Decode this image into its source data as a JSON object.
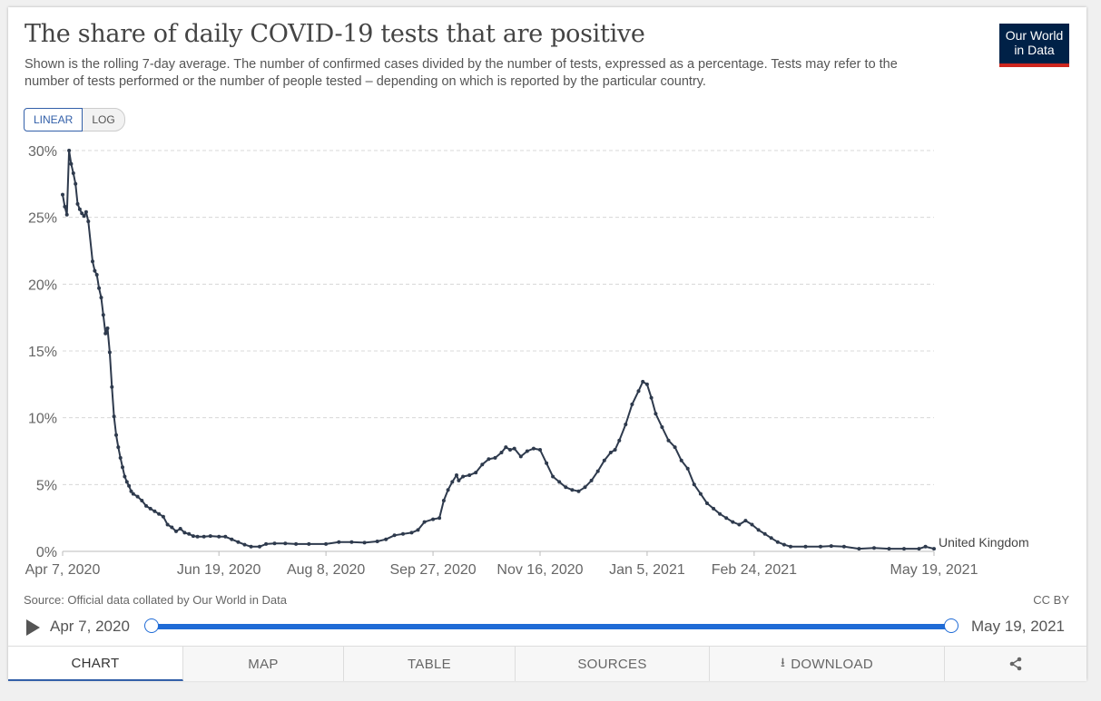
{
  "header": {
    "title": "The share of daily COVID-19 tests that are positive",
    "subtitle": "Shown is the rolling 7-day average. The number of confirmed cases divided by the number of tests, expressed as a percentage. Tests may refer to the number of tests performed or the number of people tested – depending on which is reported by the particular country.",
    "logo_line1": "Our World",
    "logo_line2": "in Data"
  },
  "scale_toggle": {
    "linear": "LINEAR",
    "log": "LOG",
    "selected": "LINEAR"
  },
  "footer": {
    "source": "Source: Official data collated by Our World in Data",
    "license": "CC BY"
  },
  "timeline": {
    "start": "Apr 7, 2020",
    "end": "May 19, 2021"
  },
  "tabs": {
    "chart": "CHART",
    "map": "MAP",
    "table": "TABLE",
    "sources": "SOURCES",
    "download": "DOWNLOAD"
  },
  "icons": {
    "play": "play-icon",
    "download": "download-icon",
    "share": "share-icon"
  },
  "colors": {
    "series": "#2e3a4d",
    "accent": "#1f6bd6",
    "logo_bg": "#002147",
    "logo_bar": "#ce261e"
  },
  "chart_data": {
    "type": "line",
    "title": "The share of daily COVID-19 tests that are positive",
    "ylabel": "",
    "xlabel": "",
    "ylim": [
      0,
      30
    ],
    "y_ticks": [
      0,
      5,
      10,
      15,
      20,
      25,
      30
    ],
    "y_tick_labels": [
      "0%",
      "5%",
      "10%",
      "15%",
      "20%",
      "25%",
      "30%"
    ],
    "x_range": [
      "2020-04-07",
      "2021-05-19"
    ],
    "x_ticks": [
      "2020-04-07",
      "2020-06-19",
      "2020-08-08",
      "2020-09-27",
      "2020-11-16",
      "2021-01-05",
      "2021-02-24",
      "2021-05-19"
    ],
    "x_tick_labels": [
      "Apr 7, 2020",
      "Jun 19, 2020",
      "Aug 8, 2020",
      "Sep 27, 2020",
      "Nov 16, 2020",
      "Jan 5, 2021",
      "Feb 24, 2021",
      "May 19, 2021"
    ],
    "grid": "horizontal dashed",
    "series": [
      {
        "name": "United Kingdom",
        "color": "#2e3a4d",
        "points": [
          [
            "2020-04-07",
            26.7
          ],
          [
            "2020-04-08",
            25.8
          ],
          [
            "2020-04-09",
            25.2
          ],
          [
            "2020-04-10",
            30.0
          ],
          [
            "2020-04-11",
            29.0
          ],
          [
            "2020-04-12",
            28.3
          ],
          [
            "2020-04-13",
            27.5
          ],
          [
            "2020-04-14",
            26.0
          ],
          [
            "2020-04-15",
            25.6
          ],
          [
            "2020-04-16",
            25.3
          ],
          [
            "2020-04-17",
            25.1
          ],
          [
            "2020-04-18",
            25.4
          ],
          [
            "2020-04-19",
            24.7
          ],
          [
            "2020-04-21",
            21.7
          ],
          [
            "2020-04-22",
            21.0
          ],
          [
            "2020-04-23",
            20.7
          ],
          [
            "2020-04-24",
            19.7
          ],
          [
            "2020-04-25",
            19.0
          ],
          [
            "2020-04-26",
            17.7
          ],
          [
            "2020-04-27",
            16.3
          ],
          [
            "2020-04-28",
            16.7
          ],
          [
            "2020-04-29",
            14.9
          ],
          [
            "2020-04-30",
            12.3
          ],
          [
            "2020-05-01",
            10.1
          ],
          [
            "2020-05-02",
            8.7
          ],
          [
            "2020-05-03",
            7.8
          ],
          [
            "2020-05-04",
            7.0
          ],
          [
            "2020-05-05",
            6.3
          ],
          [
            "2020-05-06",
            5.6
          ],
          [
            "2020-05-07",
            5.2
          ],
          [
            "2020-05-08",
            4.9
          ],
          [
            "2020-05-09",
            4.5
          ],
          [
            "2020-05-10",
            4.3
          ],
          [
            "2020-05-12",
            4.1
          ],
          [
            "2020-05-14",
            3.8
          ],
          [
            "2020-05-16",
            3.4
          ],
          [
            "2020-05-18",
            3.2
          ],
          [
            "2020-05-20",
            3.0
          ],
          [
            "2020-05-22",
            2.8
          ],
          [
            "2020-05-24",
            2.6
          ],
          [
            "2020-05-26",
            2.0
          ],
          [
            "2020-05-28",
            1.8
          ],
          [
            "2020-05-30",
            1.5
          ],
          [
            "2020-06-01",
            1.7
          ],
          [
            "2020-06-03",
            1.4
          ],
          [
            "2020-06-05",
            1.3
          ],
          [
            "2020-06-07",
            1.15
          ],
          [
            "2020-06-09",
            1.1
          ],
          [
            "2020-06-12",
            1.1
          ],
          [
            "2020-06-15",
            1.15
          ],
          [
            "2020-06-19",
            1.1
          ],
          [
            "2020-06-22",
            1.1
          ],
          [
            "2020-06-25",
            0.9
          ],
          [
            "2020-06-28",
            0.7
          ],
          [
            "2020-07-01",
            0.5
          ],
          [
            "2020-07-04",
            0.35
          ],
          [
            "2020-07-08",
            0.35
          ],
          [
            "2020-07-11",
            0.55
          ],
          [
            "2020-07-15",
            0.6
          ],
          [
            "2020-07-20",
            0.6
          ],
          [
            "2020-07-25",
            0.55
          ],
          [
            "2020-07-31",
            0.55
          ],
          [
            "2020-08-08",
            0.55
          ],
          [
            "2020-08-14",
            0.7
          ],
          [
            "2020-08-20",
            0.7
          ],
          [
            "2020-08-26",
            0.65
          ],
          [
            "2020-09-01",
            0.75
          ],
          [
            "2020-09-05",
            0.9
          ],
          [
            "2020-09-09",
            1.2
          ],
          [
            "2020-09-13",
            1.3
          ],
          [
            "2020-09-17",
            1.4
          ],
          [
            "2020-09-20",
            1.6
          ],
          [
            "2020-09-23",
            2.2
          ],
          [
            "2020-09-27",
            2.4
          ],
          [
            "2020-09-30",
            2.5
          ],
          [
            "2020-10-02",
            3.8
          ],
          [
            "2020-10-04",
            4.6
          ],
          [
            "2020-10-06",
            5.2
          ],
          [
            "2020-10-08",
            5.7
          ],
          [
            "2020-10-09",
            5.3
          ],
          [
            "2020-10-11",
            5.6
          ],
          [
            "2020-10-14",
            5.7
          ],
          [
            "2020-10-17",
            5.9
          ],
          [
            "2020-10-20",
            6.5
          ],
          [
            "2020-10-23",
            6.9
          ],
          [
            "2020-10-26",
            7.0
          ],
          [
            "2020-10-29",
            7.4
          ],
          [
            "2020-10-31",
            7.8
          ],
          [
            "2020-11-02",
            7.6
          ],
          [
            "2020-11-04",
            7.7
          ],
          [
            "2020-11-07",
            7.1
          ],
          [
            "2020-11-10",
            7.5
          ],
          [
            "2020-11-13",
            7.7
          ],
          [
            "2020-11-16",
            7.6
          ],
          [
            "2020-11-19",
            6.6
          ],
          [
            "2020-11-22",
            5.6
          ],
          [
            "2020-11-25",
            5.2
          ],
          [
            "2020-11-28",
            4.8
          ],
          [
            "2020-12-01",
            4.6
          ],
          [
            "2020-12-04",
            4.5
          ],
          [
            "2020-12-07",
            4.8
          ],
          [
            "2020-12-10",
            5.3
          ],
          [
            "2020-12-13",
            6.0
          ],
          [
            "2020-12-16",
            6.8
          ],
          [
            "2020-12-19",
            7.4
          ],
          [
            "2020-12-21",
            7.6
          ],
          [
            "2020-12-23",
            8.3
          ],
          [
            "2020-12-26",
            9.5
          ],
          [
            "2020-12-29",
            11.0
          ],
          [
            "2021-01-01",
            12.0
          ],
          [
            "2021-01-03",
            12.7
          ],
          [
            "2021-01-05",
            12.5
          ],
          [
            "2021-01-07",
            11.5
          ],
          [
            "2021-01-09",
            10.3
          ],
          [
            "2021-01-12",
            9.3
          ],
          [
            "2021-01-15",
            8.3
          ],
          [
            "2021-01-18",
            7.8
          ],
          [
            "2021-01-21",
            6.8
          ],
          [
            "2021-01-24",
            6.2
          ],
          [
            "2021-01-27",
            5.0
          ],
          [
            "2021-01-30",
            4.3
          ],
          [
            "2021-02-02",
            3.6
          ],
          [
            "2021-02-05",
            3.2
          ],
          [
            "2021-02-08",
            2.8
          ],
          [
            "2021-02-11",
            2.5
          ],
          [
            "2021-02-14",
            2.2
          ],
          [
            "2021-02-17",
            2.0
          ],
          [
            "2021-02-20",
            2.3
          ],
          [
            "2021-02-23",
            2.0
          ],
          [
            "2021-02-26",
            1.6
          ],
          [
            "2021-03-01",
            1.3
          ],
          [
            "2021-03-04",
            1.0
          ],
          [
            "2021-03-07",
            0.7
          ],
          [
            "2021-03-10",
            0.5
          ],
          [
            "2021-03-13",
            0.35
          ],
          [
            "2021-03-20",
            0.35
          ],
          [
            "2021-03-27",
            0.35
          ],
          [
            "2021-04-01",
            0.4
          ],
          [
            "2021-04-07",
            0.35
          ],
          [
            "2021-04-14",
            0.2
          ],
          [
            "2021-04-21",
            0.25
          ],
          [
            "2021-04-28",
            0.2
          ],
          [
            "2021-05-05",
            0.2
          ],
          [
            "2021-05-12",
            0.2
          ],
          [
            "2021-05-15",
            0.35
          ],
          [
            "2021-05-19",
            0.2
          ]
        ]
      }
    ]
  }
}
